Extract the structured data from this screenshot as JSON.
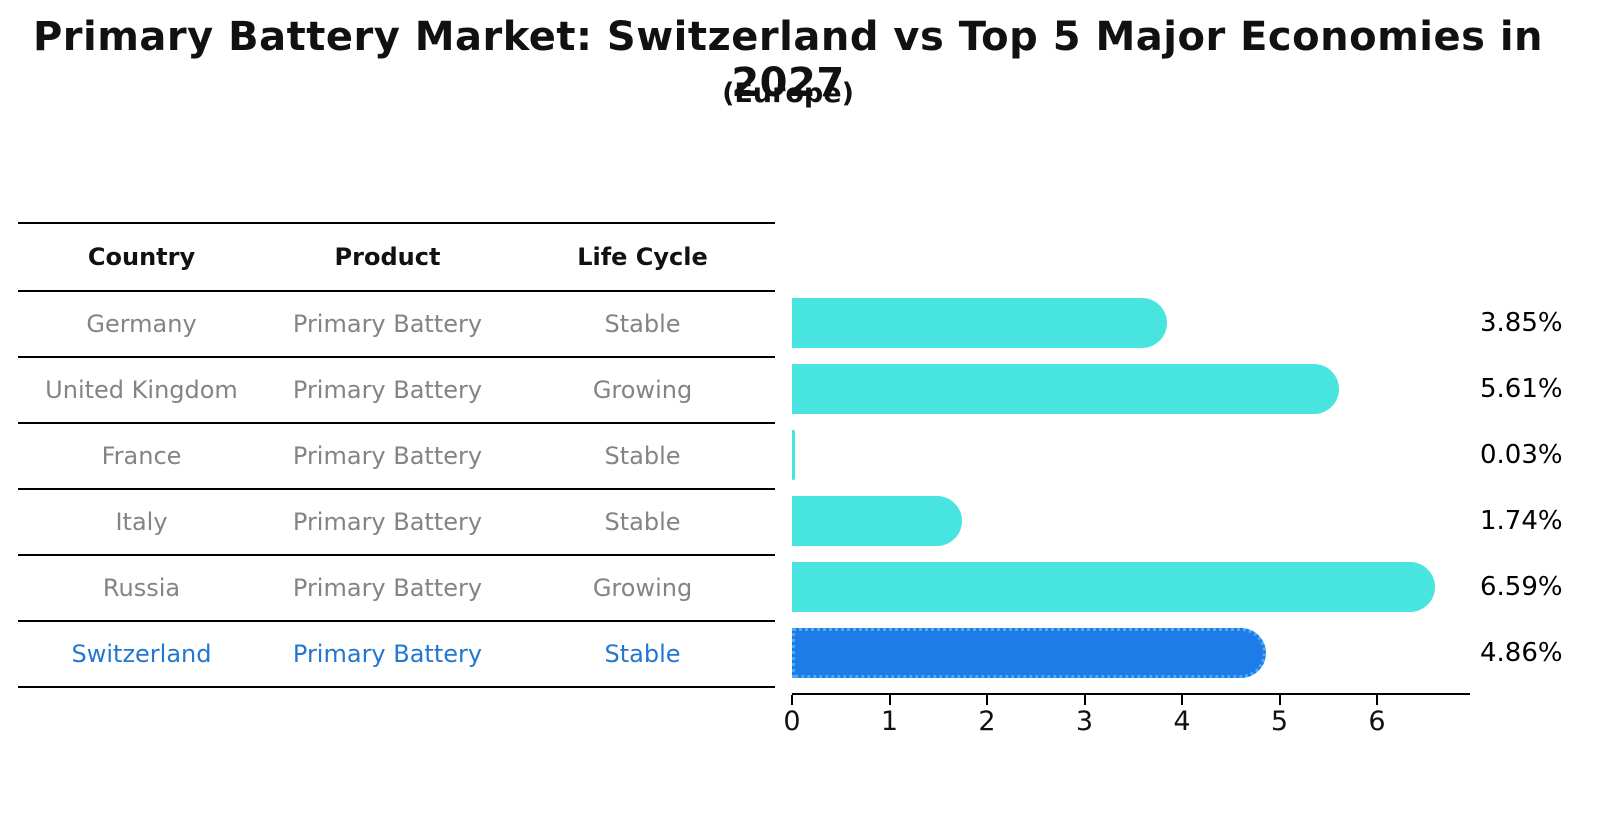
{
  "title": "Primary Battery Market: Switzerland vs Top 5 Major Economies in 2027",
  "subtitle": "(Europe)",
  "table": {
    "headers": [
      "Country",
      "Product",
      "Life Cycle"
    ],
    "rows": [
      {
        "country": "Germany",
        "product": "Primary Battery",
        "life_cycle": "Stable",
        "highlight": false
      },
      {
        "country": "United Kingdom",
        "product": "Primary Battery",
        "life_cycle": "Growing",
        "highlight": false
      },
      {
        "country": "France",
        "product": "Primary Battery",
        "life_cycle": "Stable",
        "highlight": false
      },
      {
        "country": "Italy",
        "product": "Primary Battery",
        "life_cycle": "Stable",
        "highlight": false
      },
      {
        "country": "Russia",
        "product": "Primary Battery",
        "life_cycle": "Growing",
        "highlight": false
      },
      {
        "country": "Switzerland",
        "product": "Primary Battery",
        "life_cycle": "Stable",
        "highlight": true
      }
    ]
  },
  "chart_data": {
    "type": "bar",
    "orientation": "horizontal",
    "title": "Primary Battery Market: Switzerland vs Top 5 Major Economies in 2027",
    "subtitle": "(Europe)",
    "categories": [
      "Germany",
      "United Kingdom",
      "France",
      "Italy",
      "Russia",
      "Switzerland"
    ],
    "values": [
      3.85,
      5.61,
      0.03,
      1.74,
      6.59,
      4.86
    ],
    "value_labels": [
      "3.85%",
      "5.61%",
      "0.03%",
      "1.74%",
      "6.59%",
      "4.86%"
    ],
    "highlight_category": "Switzerland",
    "x_ticks": [
      0,
      1,
      2,
      3,
      4,
      5,
      6
    ],
    "xlim": [
      0,
      6.93
    ],
    "grid": false,
    "legend": "none",
    "colors": {
      "bar": "#48E5E0",
      "highlight_bar": "#1E7CE8",
      "highlight_border": "#4FAAF5",
      "highlight_text": "#2377CE",
      "row_text": "#848484",
      "axis": "#000000"
    }
  }
}
